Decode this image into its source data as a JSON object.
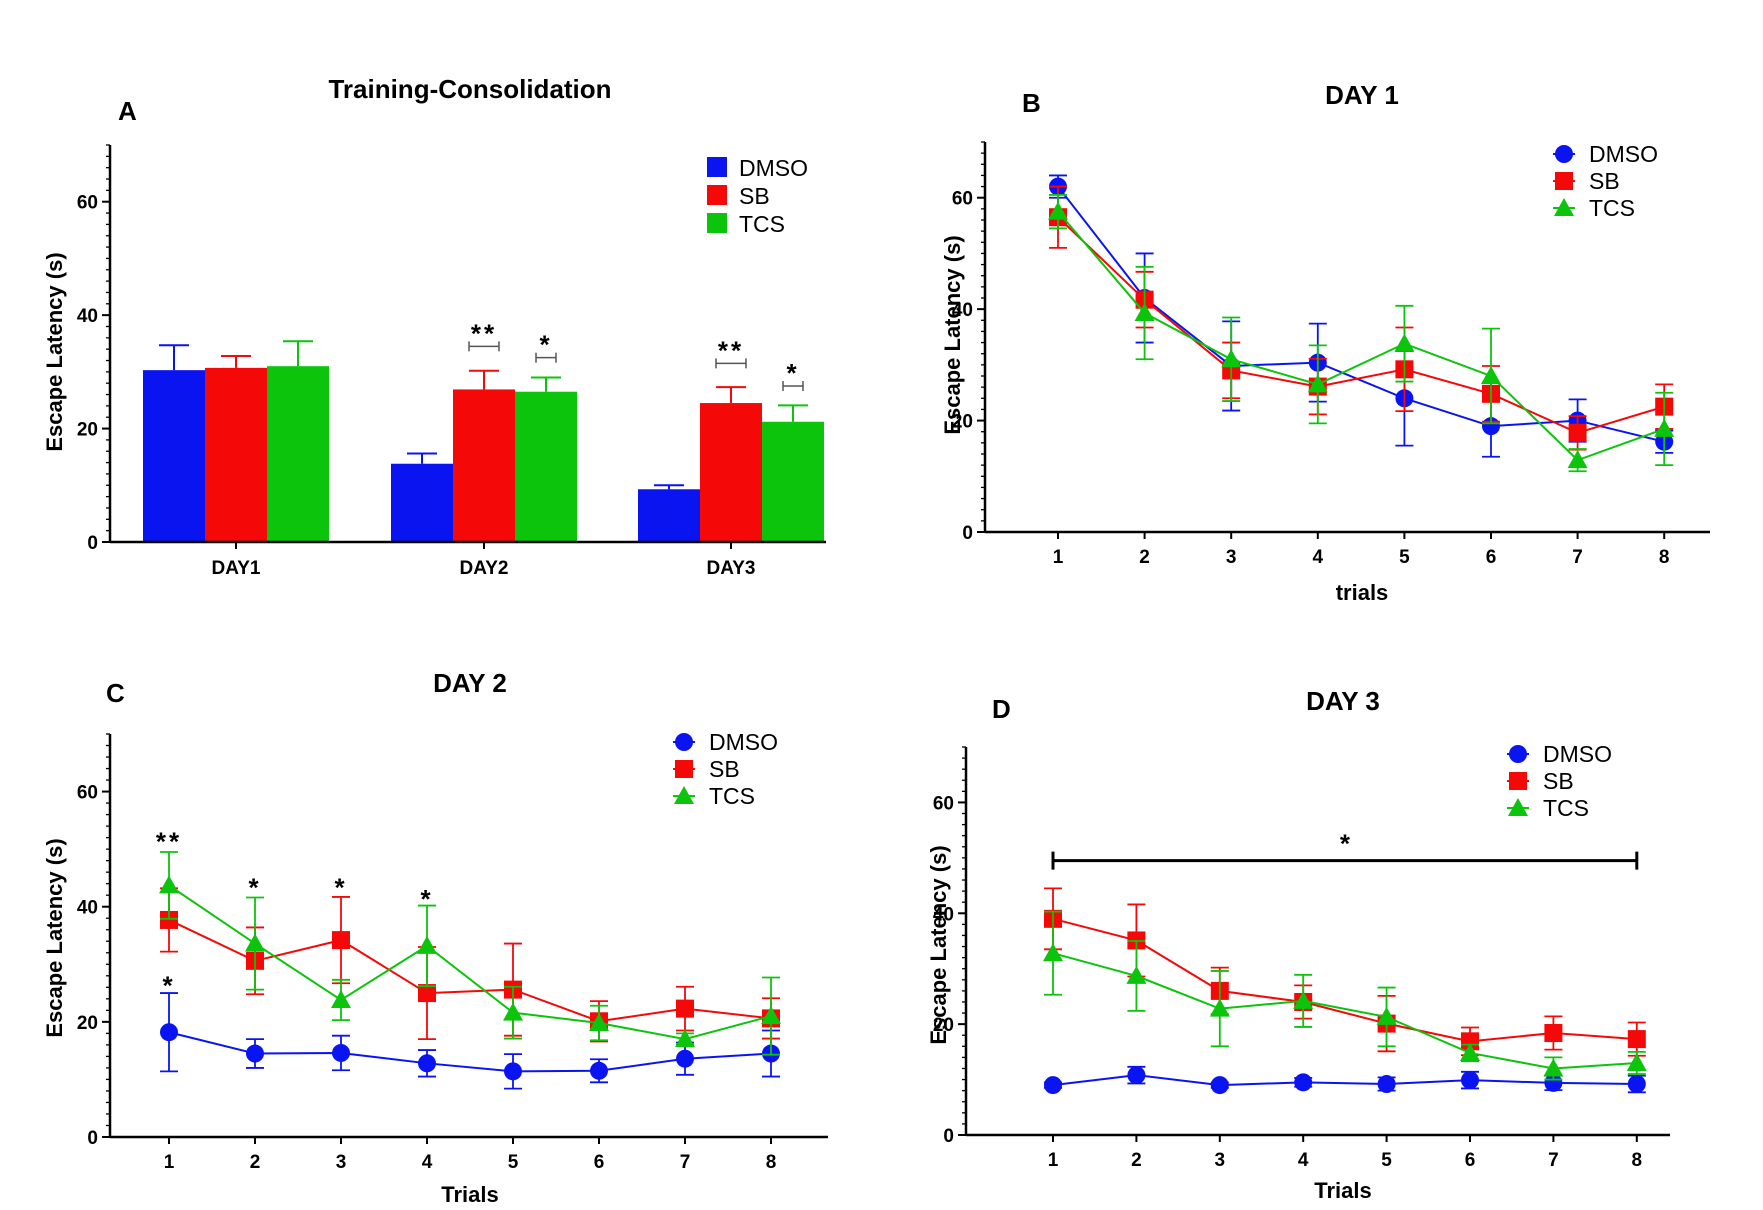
{
  "colors": {
    "DMSO": "#0a14f0",
    "SB": "#f40808",
    "TCS": "#0cc40c"
  },
  "chart_data": [
    {
      "panel": "A",
      "type": "bar",
      "title": "Training-Consolidation",
      "ylabel": "Escape Latency (s)",
      "xlabel": "",
      "categories": [
        "DAY1",
        "DAY2",
        "DAY3"
      ],
      "ylim": [
        0,
        70
      ],
      "yticks": [
        0,
        20,
        40,
        60
      ],
      "legend": "top-right",
      "series": [
        {
          "name": "DMSO",
          "values": [
            30.3,
            13.8,
            9.3
          ],
          "err": [
            4.4,
            1.8,
            0.7
          ]
        },
        {
          "name": "SB",
          "values": [
            30.7,
            26.9,
            24.5
          ],
          "err": [
            2.1,
            3.3,
            2.8
          ]
        },
        {
          "name": "TCS",
          "values": [
            31.0,
            26.5,
            21.2
          ],
          "err": [
            4.4,
            2.5,
            2.9
          ]
        }
      ],
      "annotations": [
        {
          "text": "**",
          "category": "DAY2",
          "y": 34.5,
          "bracket": [
            "DMSO",
            "SB"
          ]
        },
        {
          "text": "*",
          "category": "DAY2",
          "y": 32.5,
          "bracket": [
            "DMSO",
            "TCS"
          ]
        },
        {
          "text": "**",
          "category": "DAY3",
          "y": 31.5,
          "bracket": [
            "DMSO",
            "SB"
          ]
        },
        {
          "text": "*",
          "category": "DAY3",
          "y": 27.5,
          "bracket": [
            "DMSO",
            "TCS"
          ]
        }
      ]
    },
    {
      "panel": "B",
      "type": "line",
      "title": "DAY 1",
      "xlabel": "trials",
      "ylabel": "Escape Latency (s)",
      "x": [
        1,
        2,
        3,
        4,
        5,
        6,
        7,
        8
      ],
      "ylim": [
        0,
        70
      ],
      "yticks": [
        0,
        20,
        40,
        60
      ],
      "legend": "top-right",
      "series": [
        {
          "name": "DMSO",
          "values": [
            62.0,
            42.0,
            29.8,
            30.4,
            24.0,
            19.0,
            20.0,
            16.2
          ],
          "err": [
            2.0,
            8.0,
            8.0,
            7.0,
            8.5,
            5.5,
            3.8,
            2.0
          ]
        },
        {
          "name": "SB",
          "values": [
            56.5,
            41.7,
            29.0,
            26.1,
            29.2,
            24.8,
            17.8,
            22.5
          ],
          "err": [
            5.5,
            5.0,
            5.0,
            5.0,
            7.5,
            5.0,
            3.0,
            4.0
          ]
        },
        {
          "name": "TCS",
          "values": [
            57.5,
            39.3,
            31.0,
            26.5,
            33.8,
            28.0,
            12.9,
            18.5
          ],
          "err": [
            3.0,
            8.3,
            7.5,
            7.0,
            6.8,
            8.5,
            2.0,
            6.5
          ]
        }
      ],
      "annotations": []
    },
    {
      "panel": "C",
      "type": "line",
      "title": "DAY 2",
      "xlabel": "Trials",
      "ylabel": "Escape Latency (s)",
      "x": [
        1,
        2,
        3,
        4,
        5,
        6,
        7,
        8
      ],
      "ylim": [
        0,
        70
      ],
      "yticks": [
        0,
        20,
        40,
        60
      ],
      "legend": "top-right",
      "series": [
        {
          "name": "DMSO",
          "values": [
            18.2,
            14.5,
            14.6,
            12.8,
            11.4,
            11.5,
            13.6,
            14.5
          ],
          "err": [
            6.8,
            2.5,
            3.0,
            2.3,
            3.0,
            2.0,
            2.8,
            4.0
          ]
        },
        {
          "name": "SB",
          "values": [
            37.7,
            30.6,
            34.2,
            25.0,
            25.6,
            20.1,
            22.3,
            20.6
          ],
          "err": [
            5.5,
            5.8,
            7.5,
            8.0,
            8.0,
            3.5,
            3.8,
            3.5
          ]
        },
        {
          "name": "TCS",
          "values": [
            43.7,
            33.6,
            23.8,
            33.2,
            21.6,
            19.8,
            17.0,
            21.0
          ],
          "err": [
            5.8,
            8.0,
            3.5,
            7.0,
            4.5,
            3.0,
            1.0,
            6.7
          ]
        }
      ],
      "annotations": [
        {
          "text": "**",
          "x": 1,
          "y": 51.5
        },
        {
          "text": "*",
          "x": 1,
          "y": 26.5
        },
        {
          "text": "*",
          "x": 2,
          "y": 43.5
        },
        {
          "text": "*",
          "x": 3,
          "y": 43.5
        },
        {
          "text": "*",
          "x": 4,
          "y": 41.5
        }
      ]
    },
    {
      "panel": "D",
      "type": "line",
      "title": "DAY 3",
      "xlabel": "Trials",
      "ylabel": "Escape Latency (s)",
      "x": [
        1,
        2,
        3,
        4,
        5,
        6,
        7,
        8
      ],
      "ylim": [
        0,
        70
      ],
      "yticks": [
        0,
        20,
        40,
        60
      ],
      "legend": "top-right",
      "series": [
        {
          "name": "DMSO",
          "values": [
            9.0,
            10.8,
            9.0,
            9.5,
            9.2,
            9.9,
            9.4,
            9.2
          ],
          "err": [
            0.5,
            1.5,
            0.5,
            0.8,
            1.2,
            1.5,
            1.3,
            1.5
          ]
        },
        {
          "name": "SB",
          "values": [
            39.0,
            35.1,
            26.0,
            24.0,
            20.1,
            16.9,
            18.4,
            17.3
          ],
          "err": [
            5.5,
            6.5,
            4.2,
            3.0,
            5.0,
            2.5,
            3.0,
            3.0
          ]
        },
        {
          "name": "TCS",
          "values": [
            32.8,
            28.7,
            22.8,
            24.2,
            21.3,
            14.8,
            12.0,
            13.0
          ],
          "err": [
            7.5,
            6.3,
            6.8,
            4.7,
            5.3,
            1.5,
            2.0,
            2.0
          ]
        }
      ],
      "annotations": [
        {
          "text": "*",
          "bracket_x": [
            1,
            8
          ],
          "y": 49.5
        }
      ]
    }
  ]
}
